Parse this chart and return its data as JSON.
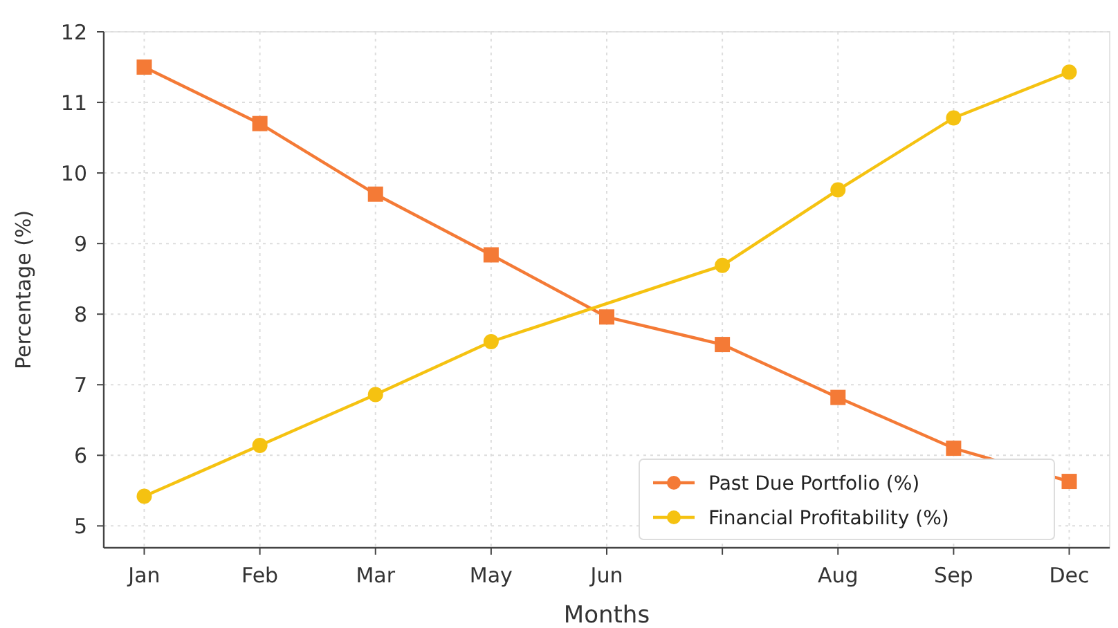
{
  "chart_data": {
    "type": "line",
    "xlabel": "Months",
    "ylabel": "Percentage (%)",
    "categories": [
      "Jan",
      "Feb",
      "Mar",
      "May",
      "Jun",
      null,
      "Aug",
      "Sep",
      "Dec"
    ],
    "ylim": [
      4.69,
      12
    ],
    "yticks": [
      5,
      6,
      7,
      8,
      9,
      10,
      11,
      12
    ],
    "series": [
      {
        "name": "Past Due Portfolio (%)",
        "color": "#f47a36",
        "marker": "square",
        "values": [
          11.5,
          10.7,
          9.7,
          8.84,
          7.96,
          7.57,
          6.82,
          6.1,
          5.63
        ]
      },
      {
        "name": "Financial Profitability (%)",
        "color": "#f5c211",
        "marker": "circle",
        "values": [
          5.42,
          6.14,
          6.86,
          7.61,
          null,
          8.69,
          9.76,
          10.78,
          11.43
        ]
      }
    ],
    "grid": true,
    "legend": "bottom right",
    "line_style": "solid"
  }
}
